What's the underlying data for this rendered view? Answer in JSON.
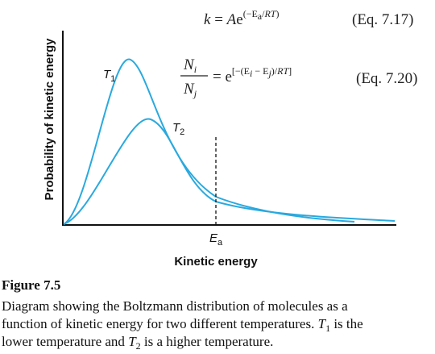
{
  "equation_1": {
    "parts": [
      "k",
      " = ",
      "A",
      "e",
      "(−E",
      "a",
      "/",
      "RT",
      ")"
    ],
    "label": "(Eq. 7.17)"
  },
  "equation_2": {
    "numerator": [
      "N",
      "i"
    ],
    "denominator": [
      "N",
      "j"
    ],
    "parts": [
      "= e",
      "[−(E",
      "i",
      " − E",
      "j",
      ")/",
      "RT",
      "]"
    ],
    "label": "(Eq. 7.20)"
  },
  "curve_labels": [
    [
      "T",
      "1"
    ],
    [
      "T",
      "2"
    ]
  ],
  "threshold_label": [
    "E",
    "a"
  ],
  "y_axis_label": "Probability of kinetic energy",
  "x_axis_label": "Kinetic energy",
  "caption": {
    "figure": "Figure 7.5",
    "lines": [
      [
        "Diagram showing the Boltzmann distribution of molecules as a"
      ],
      [
        "function of kinetic energy for two different temperatures. ",
        "T",
        "1",
        " is the"
      ],
      [
        "lower temperature and ",
        "T",
        "2",
        " is a higher temperature."
      ]
    ]
  }
}
